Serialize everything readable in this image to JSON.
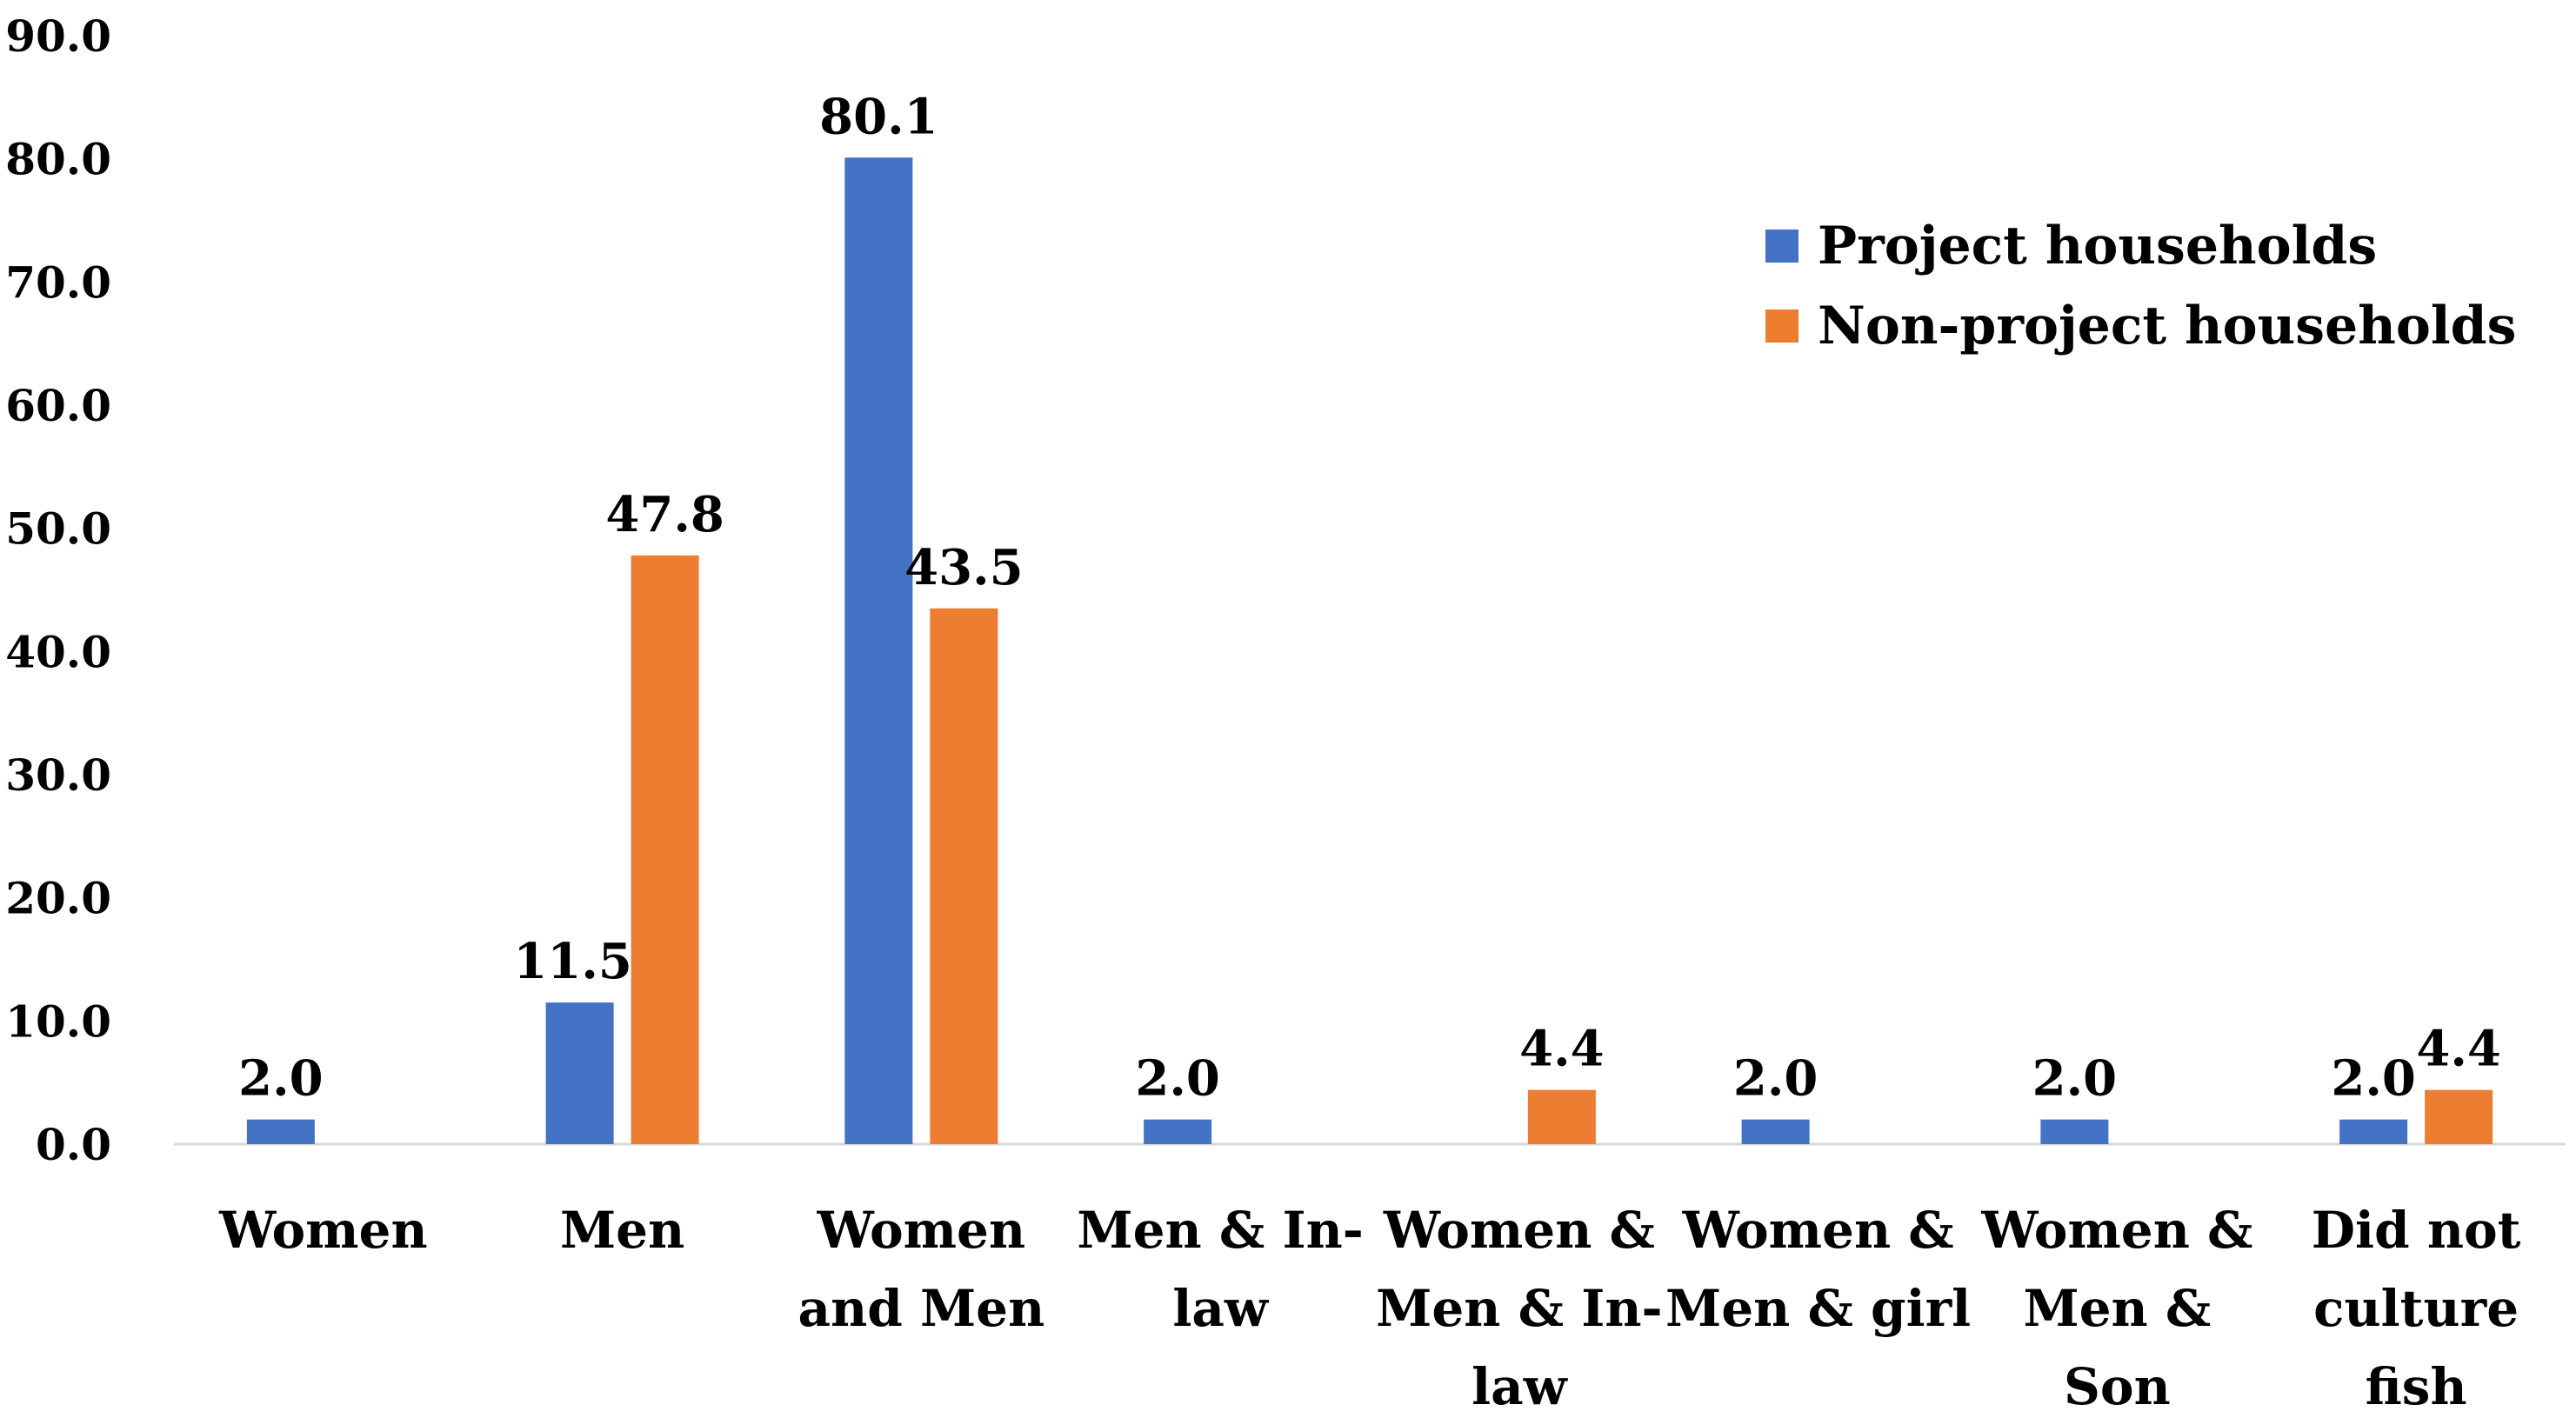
{
  "chart_data": {
    "type": "bar",
    "title": "",
    "xlabel": "",
    "ylabel": "",
    "ylim": [
      0,
      90
    ],
    "yticks": [
      "0.0",
      "10.0",
      "20.0",
      "30.0",
      "40.0",
      "50.0",
      "60.0",
      "70.0",
      "80.0",
      "90.0"
    ],
    "grid": false,
    "legend_position": "top-right",
    "categories": [
      [
        "Women"
      ],
      [
        "Men"
      ],
      [
        "Women",
        "and Men"
      ],
      [
        "Men & In-",
        "law"
      ],
      [
        "Women &",
        "Men & In-",
        "law"
      ],
      [
        "Women &",
        "Men & girl"
      ],
      [
        "Women &",
        "Men &",
        "Son"
      ],
      [
        "Did not",
        "culture",
        "fish"
      ]
    ],
    "series": [
      {
        "name": "Project households",
        "color": "#4472C4",
        "values": [
          2.0,
          11.5,
          80.1,
          2.0,
          null,
          2.0,
          2.0,
          2.0
        ],
        "labels": [
          "2.0",
          "11.5",
          "80.1",
          "2.0",
          null,
          "2.0",
          "2.0",
          "2.0"
        ]
      },
      {
        "name": "Non-project households",
        "color": "#ED7D31",
        "values": [
          null,
          47.8,
          43.5,
          null,
          4.4,
          null,
          null,
          4.4
        ],
        "labels": [
          null,
          "47.8",
          "43.5",
          null,
          "4.4",
          null,
          null,
          "4.4"
        ]
      }
    ]
  }
}
